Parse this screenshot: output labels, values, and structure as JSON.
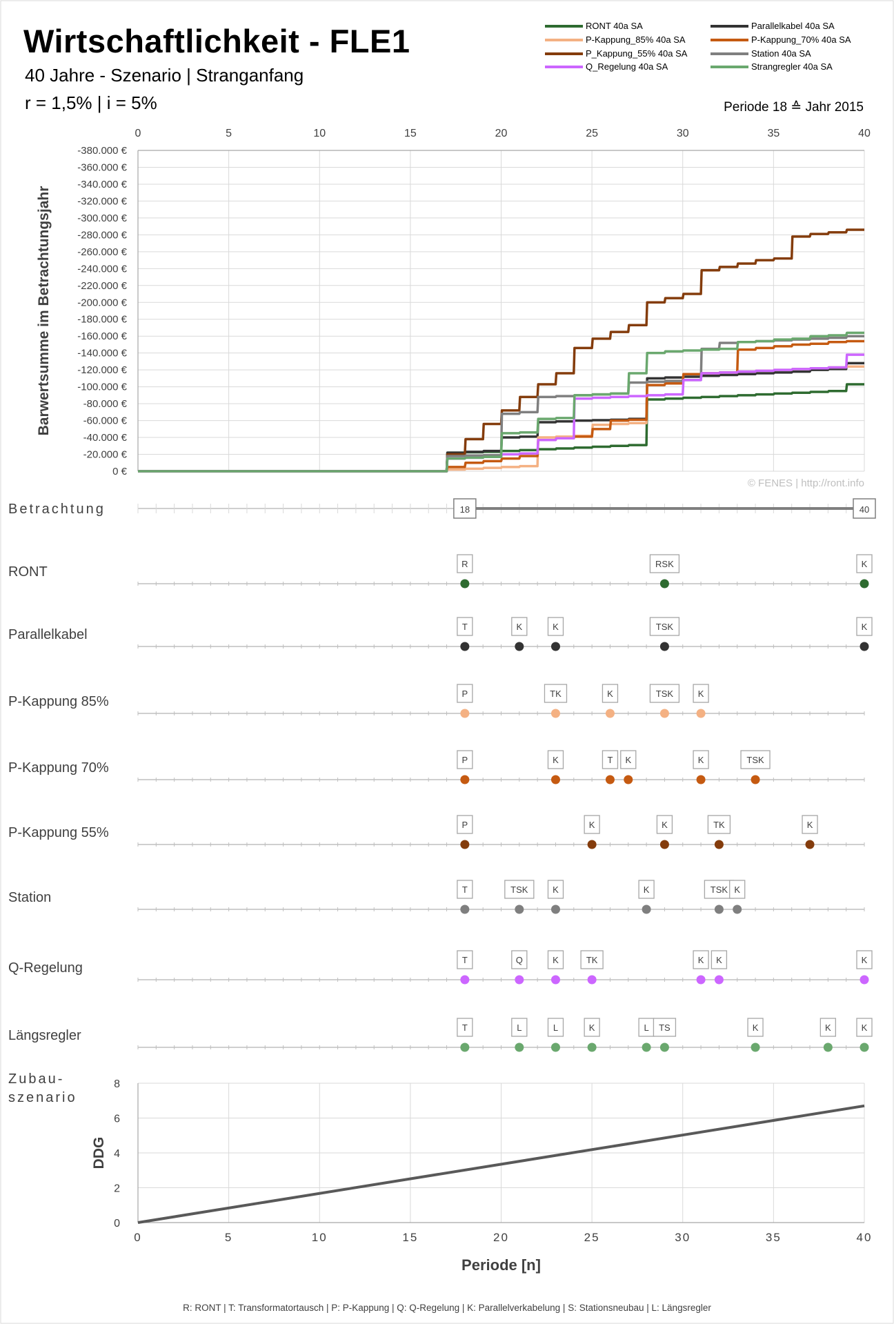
{
  "header": {
    "title": "Wirtschaftlichkeit - FLE1",
    "subtitle": "40 Jahre - Szenario | Stranganfang",
    "params": "r = 1,5%  |  i = 5%",
    "period_note": "Periode 18 ≙ Jahr 2015"
  },
  "watermark": "© FENES  |  http://ront.info",
  "footer_legend": "R: RONT    |    T: Transformatortausch    |    P: P-Kappung    |    Q: Q-Regelung    |    K: Parallelverkabelung    |    S: Stationsneubau    |    L: Längsregler",
  "colors": {
    "RONT": "#2e6b30",
    "Parallelkabel": "#333333",
    "P85": "#f4b183",
    "P70": "#c55a11",
    "P55": "#843c0c",
    "Station": "#7f7f7f",
    "Q": "#cc66ff",
    "Strang": "#6aa86e",
    "axis": "#bfbfbf",
    "grid": "#d9d9d9"
  },
  "chart_data": [
    {
      "type": "line",
      "ylabel": "Barwertsumme im Betrachtungsjahr",
      "xlim": [
        0,
        40
      ],
      "ylim": [
        0,
        -380000
      ],
      "y_tick_labels": [
        "0 €",
        "-20.000 €",
        "-40.000 €",
        "-60.000 €",
        "-80.000 €",
        "-100.000 €",
        "-120.000 €",
        "-140.000 €",
        "-160.000 €",
        "-180.000 €",
        "-200.000 €",
        "-220.000 €",
        "-240.000 €",
        "-260.000 €",
        "-280.000 €",
        "-300.000 €",
        "-320.000 €",
        "-340.000 €",
        "-360.000 €",
        "-380.000 €"
      ],
      "x_tick_labels": [
        "0",
        "5",
        "10",
        "15",
        "20",
        "25",
        "30",
        "35",
        "40"
      ],
      "grid": true,
      "legend_position": "top-right",
      "series": [
        {
          "name": "RONT 40a SA",
          "color_key": "RONT",
          "values": [
            0,
            0,
            0,
            0,
            0,
            0,
            0,
            0,
            0,
            0,
            0,
            0,
            0,
            0,
            0,
            0,
            0,
            0,
            -22000,
            -22500,
            -23000,
            -24000,
            -25000,
            -26000,
            -27000,
            -28000,
            -29000,
            -30000,
            -31000,
            -85000,
            -86000,
            -87000,
            -88000,
            -89000,
            -90000,
            -91000,
            -92000,
            -93000,
            -94000,
            -95000,
            -103000
          ]
        },
        {
          "name": "Parallelkabel 40a SA",
          "color_key": "Parallelkabel",
          "values": [
            0,
            0,
            0,
            0,
            0,
            0,
            0,
            0,
            0,
            0,
            0,
            0,
            0,
            0,
            0,
            0,
            0,
            0,
            -22000,
            -23000,
            -24000,
            -40000,
            -41000,
            -58000,
            -59000,
            -60000,
            -60500,
            -61000,
            -62000,
            -110000,
            -111000,
            -112000,
            -113000,
            -114000,
            -115000,
            -116000,
            -117000,
            -118000,
            -120000,
            -121000,
            -128000
          ]
        },
        {
          "name": "P-Kappung_85% 40a SA",
          "color_key": "P85",
          "values": [
            0,
            0,
            0,
            0,
            0,
            0,
            0,
            0,
            0,
            0,
            0,
            0,
            0,
            0,
            0,
            0,
            0,
            0,
            -2000,
            -3000,
            -4000,
            -5000,
            -6000,
            -40000,
            -41000,
            -42000,
            -55000,
            -56000,
            -57000,
            -106000,
            -107000,
            -115000,
            -116000,
            -117000,
            -118000,
            -119000,
            -120000,
            -121000,
            -122000,
            -123000,
            -124000
          ]
        },
        {
          "name": "P-Kappung_70% 40a SA",
          "color_key": "P70",
          "values": [
            0,
            0,
            0,
            0,
            0,
            0,
            0,
            0,
            0,
            0,
            0,
            0,
            0,
            0,
            0,
            0,
            0,
            0,
            -5000,
            -10000,
            -12000,
            -15000,
            -18000,
            -37000,
            -39000,
            -41000,
            -50000,
            -60000,
            -61000,
            -102000,
            -104000,
            -115000,
            -116000,
            -117000,
            -144000,
            -146000,
            -148000,
            -150000,
            -151000,
            -153000,
            -154000
          ]
        },
        {
          "name": "P_Kappung_55% 40a SA",
          "color_key": "P55",
          "values": [
            0,
            0,
            0,
            0,
            0,
            0,
            0,
            0,
            0,
            0,
            0,
            0,
            0,
            0,
            0,
            0,
            0,
            0,
            -20000,
            -38000,
            -56000,
            -72000,
            -88000,
            -103000,
            -116000,
            -146000,
            -157000,
            -165000,
            -173000,
            -200000,
            -205000,
            -210000,
            -238000,
            -242000,
            -246000,
            -250000,
            -252000,
            -278000,
            -281000,
            -283000,
            -286000
          ]
        },
        {
          "name": "Station 40a SA",
          "color_key": "Station",
          "values": [
            0,
            0,
            0,
            0,
            0,
            0,
            0,
            0,
            0,
            0,
            0,
            0,
            0,
            0,
            0,
            0,
            0,
            0,
            -18000,
            -18500,
            -19000,
            -68000,
            -70000,
            -88000,
            -89000,
            -90000,
            -91000,
            -92000,
            -105000,
            -106000,
            -107000,
            -108000,
            -145000,
            -152000,
            -153000,
            -154000,
            -155000,
            -156000,
            -157000,
            -158000,
            -160000
          ]
        },
        {
          "name": "Q_Regelung 40a SA",
          "color_key": "Q",
          "values": [
            0,
            0,
            0,
            0,
            0,
            0,
            0,
            0,
            0,
            0,
            0,
            0,
            0,
            0,
            0,
            0,
            0,
            0,
            -15000,
            -16000,
            -17000,
            -20000,
            -21000,
            -37000,
            -39000,
            -86000,
            -87000,
            -88000,
            -89000,
            -90000,
            -91000,
            -108000,
            -116000,
            -117000,
            -118000,
            -119000,
            -120000,
            -121000,
            -122000,
            -123000,
            -138000
          ]
        },
        {
          "name": "Strangregler 40a SA",
          "color_key": "Strang",
          "values": [
            0,
            0,
            0,
            0,
            0,
            0,
            0,
            0,
            0,
            0,
            0,
            0,
            0,
            0,
            0,
            0,
            0,
            0,
            -15000,
            -16000,
            -17000,
            -45000,
            -46000,
            -62000,
            -63000,
            -90000,
            -91000,
            -92000,
            -116000,
            -140000,
            -142000,
            -143000,
            -144000,
            -145000,
            -153000,
            -154000,
            -156000,
            -157000,
            -160000,
            -161000,
            -164000
          ]
        }
      ]
    },
    {
      "type": "timeline",
      "xlim": [
        0,
        40
      ],
      "betrachtung": {
        "label": "Betrachtung",
        "start": 18,
        "end": 40,
        "start_label": "18",
        "end_label": "40"
      },
      "rows": [
        {
          "name": "RONT",
          "color_key": "RONT",
          "events": [
            {
              "x": 18,
              "label": "R"
            },
            {
              "x": 29,
              "label": "RSK"
            },
            {
              "x": 40,
              "label": "K"
            }
          ]
        },
        {
          "name": "Parallelkabel",
          "color_key": "Parallelkabel",
          "events": [
            {
              "x": 18,
              "label": "T"
            },
            {
              "x": 21,
              "label": "K"
            },
            {
              "x": 23,
              "label": "K"
            },
            {
              "x": 29,
              "label": "TSK"
            },
            {
              "x": 40,
              "label": "K"
            }
          ]
        },
        {
          "name": "P-Kappung 85%",
          "color_key": "P85",
          "events": [
            {
              "x": 18,
              "label": "P"
            },
            {
              "x": 23,
              "label": "TK"
            },
            {
              "x": 26,
              "label": "K"
            },
            {
              "x": 29,
              "label": "TSK"
            },
            {
              "x": 31,
              "label": "K"
            }
          ]
        },
        {
          "name": "P-Kappung 70%",
          "color_key": "P70",
          "events": [
            {
              "x": 18,
              "label": "P"
            },
            {
              "x": 23,
              "label": "K"
            },
            {
              "x": 26,
              "label": "T"
            },
            {
              "x": 27,
              "label": "K"
            },
            {
              "x": 31,
              "label": "K"
            },
            {
              "x": 34,
              "label": "TSK"
            }
          ]
        },
        {
          "name": "P-Kappung 55%",
          "color_key": "P55",
          "events": [
            {
              "x": 18,
              "label": "P"
            },
            {
              "x": 25,
              "label": "K"
            },
            {
              "x": 29,
              "label": "K"
            },
            {
              "x": 32,
              "label": "TK"
            },
            {
              "x": 37,
              "label": "K"
            }
          ]
        },
        {
          "name": "Station",
          "color_key": "Station",
          "events": [
            {
              "x": 18,
              "label": "T"
            },
            {
              "x": 21,
              "label": "TSK"
            },
            {
              "x": 23,
              "label": "K"
            },
            {
              "x": 28,
              "label": "K"
            },
            {
              "x": 32,
              "label": "TSK"
            },
            {
              "x": 33,
              "label": "K"
            }
          ]
        },
        {
          "name": "Q-Regelung",
          "color_key": "Q",
          "events": [
            {
              "x": 18,
              "label": "T"
            },
            {
              "x": 21,
              "label": "Q"
            },
            {
              "x": 23,
              "label": "K"
            },
            {
              "x": 25,
              "label": "TK"
            },
            {
              "x": 31,
              "label": "K"
            },
            {
              "x": 32,
              "label": "K"
            },
            {
              "x": 40,
              "label": "K"
            }
          ]
        },
        {
          "name": "Längsregler",
          "color_key": "Strang",
          "events": [
            {
              "x": 18,
              "label": "T"
            },
            {
              "x": 21,
              "label": "L"
            },
            {
              "x": 23,
              "label": "L"
            },
            {
              "x": 25,
              "label": "K"
            },
            {
              "x": 28,
              "label": "L"
            },
            {
              "x": 29,
              "label": "TS"
            },
            {
              "x": 34,
              "label": "K"
            },
            {
              "x": 38,
              "label": "K"
            },
            {
              "x": 40,
              "label": "K"
            }
          ]
        }
      ]
    },
    {
      "type": "line",
      "title_left": "Zubau-\nszenario",
      "title_left_lines": [
        "Zubau-",
        "szenario"
      ],
      "xlabel": "Periode [n]",
      "ylabel": "DDG",
      "xlim": [
        0,
        40
      ],
      "ylim": [
        0,
        8
      ],
      "x_tick_labels": [
        "0",
        "5",
        "10",
        "15",
        "20",
        "25",
        "30",
        "35",
        "40"
      ],
      "y_tick_labels": [
        "0",
        "2",
        "4",
        "6",
        "8"
      ],
      "grid": true,
      "series": [
        {
          "color": "#595959",
          "x": [
            0,
            40
          ],
          "values": [
            0,
            6.7
          ]
        }
      ]
    }
  ]
}
